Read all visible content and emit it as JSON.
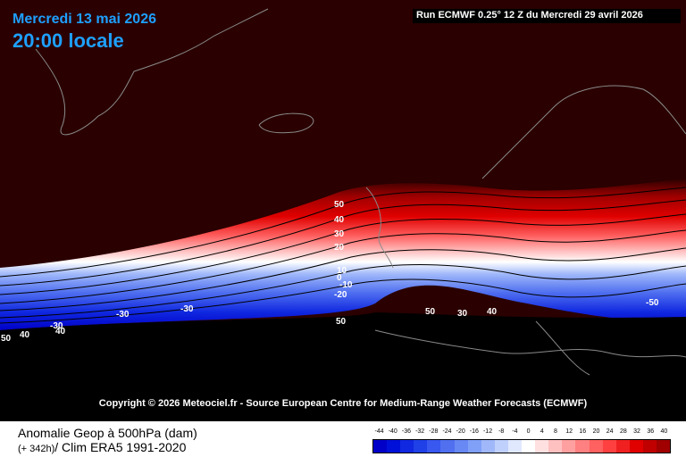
{
  "header": {
    "date": "Mercredi 13 mai 2026",
    "time": "20:00 locale",
    "run": "Run ECMWF 0.25° 12 Z du Mercredi 29 avril 2026"
  },
  "copyright": "Copyright © 2026 Meteociel.fr - Source European Centre for Medium-Range Weather Forecasts (ECMWF)",
  "footer": {
    "title": "Anomalie Geop à 500hPa (dam)",
    "lead": "(+ 342h)",
    "clim": "/ Clim ERA5 1991-2020"
  },
  "legend": {
    "ticks": [
      "-44",
      "-40",
      "-36",
      "-32",
      "-28",
      "-24",
      "-20",
      "-16",
      "-12",
      "-8",
      "-4",
      "0",
      "4",
      "8",
      "12",
      "16",
      "20",
      "24",
      "28",
      "32",
      "36",
      "40"
    ],
    "colors": [
      "#0000c8",
      "#0010d8",
      "#1028e0",
      "#2040e8",
      "#3858f0",
      "#5070f0",
      "#6888f4",
      "#80a0f8",
      "#a0b8fa",
      "#c0d0fc",
      "#e0e8fe",
      "#ffffff",
      "#ffe0e0",
      "#ffc0c0",
      "#ffa0a0",
      "#ff8080",
      "#ff6060",
      "#ff4040",
      "#f02020",
      "#e00000",
      "#c00000",
      "#a00000"
    ]
  },
  "contour_labels": [
    {
      "text": "50",
      "name": "contour-label-50"
    },
    {
      "text": "40",
      "name": "contour-label-40"
    },
    {
      "text": "30",
      "name": "contour-label-30"
    },
    {
      "text": "20",
      "name": "contour-label-20"
    },
    {
      "text": "10",
      "name": "contour-label-10"
    },
    {
      "text": "0",
      "name": "contour-label-0"
    },
    {
      "text": "-10",
      "name": "contour-label-m10"
    },
    {
      "text": "-20",
      "name": "contour-label-m20"
    },
    {
      "text": "-30",
      "name": "contour-label-m30-a"
    },
    {
      "text": "-30",
      "name": "contour-label-m30-b"
    },
    {
      "text": "-30",
      "name": "contour-label-m30-c"
    },
    {
      "text": "-50",
      "name": "contour-label-m50-east"
    },
    {
      "text": "50",
      "name": "contour-label-50-south"
    },
    {
      "text": "50",
      "name": "contour-label-50-spain"
    },
    {
      "text": "30",
      "name": "contour-label-30-italy"
    },
    {
      "text": "40",
      "name": "contour-label-40-south"
    },
    {
      "text": "50",
      "name": "contour-label-50-west"
    },
    {
      "text": "40",
      "name": "contour-label-40-west"
    },
    {
      "text": "40",
      "name": "contour-label-40-west-b"
    }
  ],
  "colors": {
    "high_anomaly": "#2a0000",
    "low_region": "#000000",
    "text_accent": "#1ea0ff"
  }
}
